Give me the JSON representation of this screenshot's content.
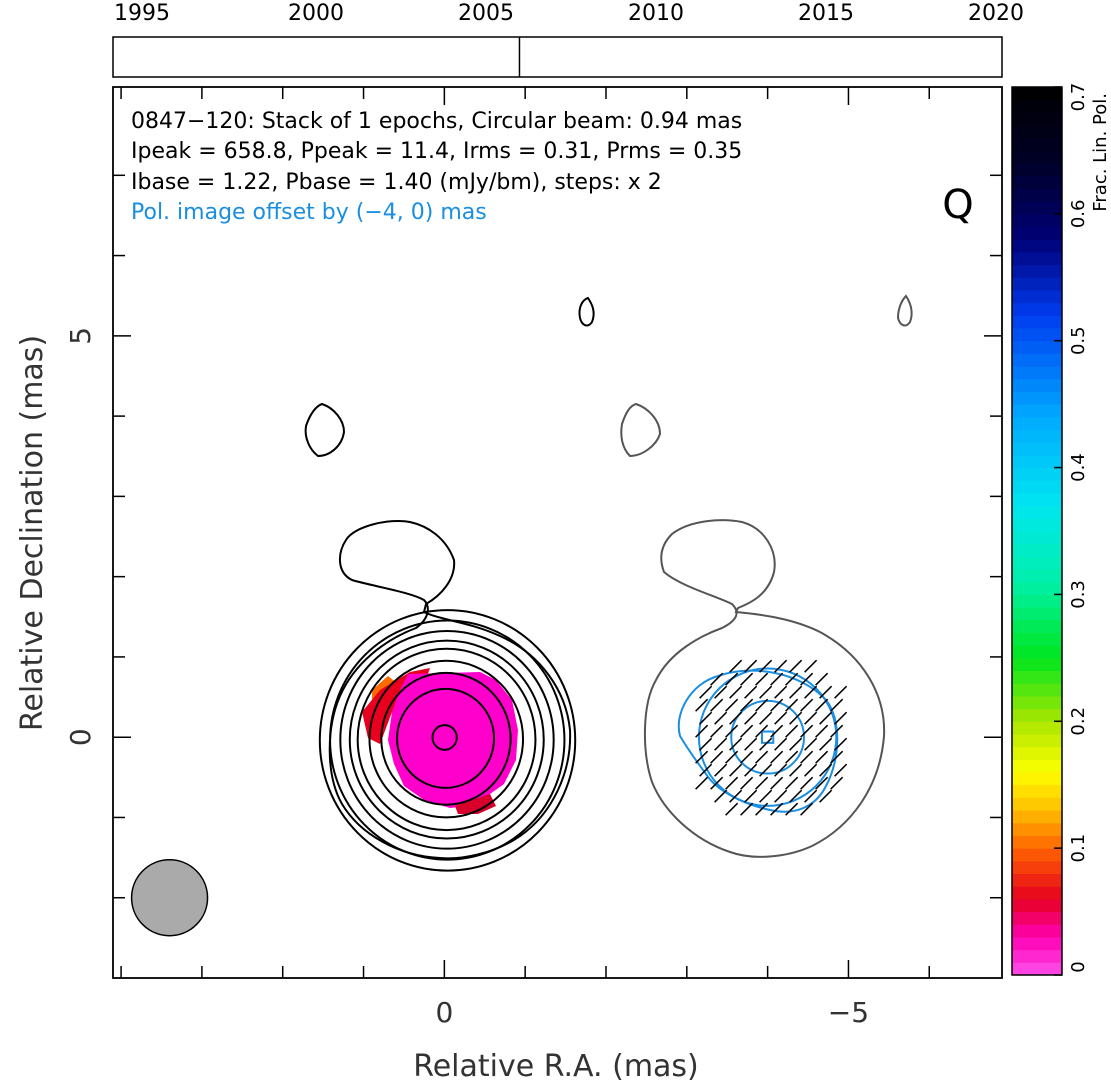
{
  "chart_data": {
    "type": "contour",
    "source": "0847-120",
    "epoch_timeline": {
      "tick_labels": [
        "1995",
        "2000",
        "2005",
        "2010",
        "2015",
        "2020"
      ],
      "epoch_years": [
        2006.05
      ]
    },
    "info_lines": [
      "0847−120: Stack of 1 epochs, Circular beam: 0.94 mas",
      "Ipeak = 658.8, Ppeak = 11.4, Irms = 0.31, Prms = 0.35",
      "Ibase = 1.22, Pbase = 1.40 (mJy/bm), steps: x 2"
    ],
    "pol_offset_note": "Pol. image offset by (−4, 0) mas",
    "quality_grade": "Q",
    "xlabel": "Relative R.A. (mas)",
    "ylabel": "Relative Declination (mas)",
    "xlim": [
      4.1,
      -6.9
    ],
    "ylim": [
      -3.0,
      8.1
    ],
    "x_tick_labels": [
      "0",
      "−5"
    ],
    "y_tick_labels": [
      "0",
      "5"
    ],
    "x_tick_values": [
      0,
      -5
    ],
    "y_tick_values": [
      0,
      5
    ],
    "x_minor_ticks": [
      4,
      3,
      2,
      1,
      0,
      -1,
      -2,
      -3,
      -4,
      -5,
      -6
    ],
    "y_minor_ticks": [
      -2,
      -1,
      0,
      1,
      2,
      3,
      4,
      5,
      6,
      7
    ],
    "beam": {
      "diameter_mas": 0.94,
      "x": 3.4,
      "y": -2.0,
      "color": "#aaaaaa"
    },
    "intensity_contours": {
      "levels": 9,
      "center": [
        0,
        0
      ],
      "radii_mas": [
        0.15,
        0.6,
        0.8,
        0.95,
        1.1,
        1.2,
        1.32,
        1.45,
        1.58
      ],
      "color": "#000000"
    },
    "pol_contours": {
      "levels": 3,
      "center": [
        -4,
        0
      ],
      "radii_mas": [
        0.07,
        0.45,
        0.85
      ],
      "color": "#1a8ee0"
    },
    "colorbar": {
      "label": "Frac. Lin. Pol.",
      "range": [
        0,
        0.7
      ],
      "tick_labels": [
        "0",
        "0.1",
        "0.2",
        "0.3",
        "0.4",
        "0.5",
        "0.6",
        "0.7"
      ],
      "tick_values": [
        0,
        0.1,
        0.2,
        0.3,
        0.4,
        0.5,
        0.6,
        0.7
      ]
    },
    "colors": {
      "fpol_main": "#ff00cc",
      "fpol_edge": "#e8001e",
      "fpol_orange": "#ff6a00",
      "pol_contour": "#1a8ee0",
      "offset_text": "#1a8ee0",
      "secondary_contour": "#555555"
    }
  }
}
